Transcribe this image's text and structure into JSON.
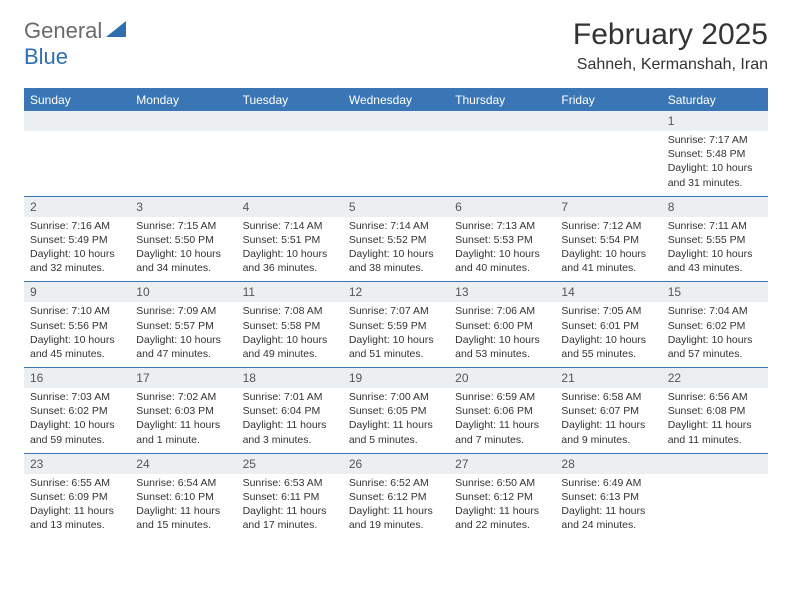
{
  "logo": {
    "text_general": "General",
    "text_blue": "Blue",
    "grey": "#6a6a6a",
    "blue": "#2f6fb0"
  },
  "title": {
    "month": "February 2025",
    "location": "Sahneh, Kermanshah, Iran"
  },
  "colors": {
    "header_bar": "#3a76b5",
    "daynum_bg": "#eceff1",
    "text": "#333333",
    "background": "#ffffff"
  },
  "typography": {
    "title_fontsize": 30,
    "location_fontsize": 16,
    "weekday_fontsize": 12,
    "daynum_fontsize": 12,
    "content_fontsize": 10.5
  },
  "weekdays": [
    "Sunday",
    "Monday",
    "Tuesday",
    "Wednesday",
    "Thursday",
    "Friday",
    "Saturday"
  ],
  "weeks": [
    [
      {
        "n": "",
        "sr": "",
        "ss": "",
        "dl": ""
      },
      {
        "n": "",
        "sr": "",
        "ss": "",
        "dl": ""
      },
      {
        "n": "",
        "sr": "",
        "ss": "",
        "dl": ""
      },
      {
        "n": "",
        "sr": "",
        "ss": "",
        "dl": ""
      },
      {
        "n": "",
        "sr": "",
        "ss": "",
        "dl": ""
      },
      {
        "n": "",
        "sr": "",
        "ss": "",
        "dl": ""
      },
      {
        "n": "1",
        "sr": "Sunrise: 7:17 AM",
        "ss": "Sunset: 5:48 PM",
        "dl": "Daylight: 10 hours and 31 minutes."
      }
    ],
    [
      {
        "n": "2",
        "sr": "Sunrise: 7:16 AM",
        "ss": "Sunset: 5:49 PM",
        "dl": "Daylight: 10 hours and 32 minutes."
      },
      {
        "n": "3",
        "sr": "Sunrise: 7:15 AM",
        "ss": "Sunset: 5:50 PM",
        "dl": "Daylight: 10 hours and 34 minutes."
      },
      {
        "n": "4",
        "sr": "Sunrise: 7:14 AM",
        "ss": "Sunset: 5:51 PM",
        "dl": "Daylight: 10 hours and 36 minutes."
      },
      {
        "n": "5",
        "sr": "Sunrise: 7:14 AM",
        "ss": "Sunset: 5:52 PM",
        "dl": "Daylight: 10 hours and 38 minutes."
      },
      {
        "n": "6",
        "sr": "Sunrise: 7:13 AM",
        "ss": "Sunset: 5:53 PM",
        "dl": "Daylight: 10 hours and 40 minutes."
      },
      {
        "n": "7",
        "sr": "Sunrise: 7:12 AM",
        "ss": "Sunset: 5:54 PM",
        "dl": "Daylight: 10 hours and 41 minutes."
      },
      {
        "n": "8",
        "sr": "Sunrise: 7:11 AM",
        "ss": "Sunset: 5:55 PM",
        "dl": "Daylight: 10 hours and 43 minutes."
      }
    ],
    [
      {
        "n": "9",
        "sr": "Sunrise: 7:10 AM",
        "ss": "Sunset: 5:56 PM",
        "dl": "Daylight: 10 hours and 45 minutes."
      },
      {
        "n": "10",
        "sr": "Sunrise: 7:09 AM",
        "ss": "Sunset: 5:57 PM",
        "dl": "Daylight: 10 hours and 47 minutes."
      },
      {
        "n": "11",
        "sr": "Sunrise: 7:08 AM",
        "ss": "Sunset: 5:58 PM",
        "dl": "Daylight: 10 hours and 49 minutes."
      },
      {
        "n": "12",
        "sr": "Sunrise: 7:07 AM",
        "ss": "Sunset: 5:59 PM",
        "dl": "Daylight: 10 hours and 51 minutes."
      },
      {
        "n": "13",
        "sr": "Sunrise: 7:06 AM",
        "ss": "Sunset: 6:00 PM",
        "dl": "Daylight: 10 hours and 53 minutes."
      },
      {
        "n": "14",
        "sr": "Sunrise: 7:05 AM",
        "ss": "Sunset: 6:01 PM",
        "dl": "Daylight: 10 hours and 55 minutes."
      },
      {
        "n": "15",
        "sr": "Sunrise: 7:04 AM",
        "ss": "Sunset: 6:02 PM",
        "dl": "Daylight: 10 hours and 57 minutes."
      }
    ],
    [
      {
        "n": "16",
        "sr": "Sunrise: 7:03 AM",
        "ss": "Sunset: 6:02 PM",
        "dl": "Daylight: 10 hours and 59 minutes."
      },
      {
        "n": "17",
        "sr": "Sunrise: 7:02 AM",
        "ss": "Sunset: 6:03 PM",
        "dl": "Daylight: 11 hours and 1 minute."
      },
      {
        "n": "18",
        "sr": "Sunrise: 7:01 AM",
        "ss": "Sunset: 6:04 PM",
        "dl": "Daylight: 11 hours and 3 minutes."
      },
      {
        "n": "19",
        "sr": "Sunrise: 7:00 AM",
        "ss": "Sunset: 6:05 PM",
        "dl": "Daylight: 11 hours and 5 minutes."
      },
      {
        "n": "20",
        "sr": "Sunrise: 6:59 AM",
        "ss": "Sunset: 6:06 PM",
        "dl": "Daylight: 11 hours and 7 minutes."
      },
      {
        "n": "21",
        "sr": "Sunrise: 6:58 AM",
        "ss": "Sunset: 6:07 PM",
        "dl": "Daylight: 11 hours and 9 minutes."
      },
      {
        "n": "22",
        "sr": "Sunrise: 6:56 AM",
        "ss": "Sunset: 6:08 PM",
        "dl": "Daylight: 11 hours and 11 minutes."
      }
    ],
    [
      {
        "n": "23",
        "sr": "Sunrise: 6:55 AM",
        "ss": "Sunset: 6:09 PM",
        "dl": "Daylight: 11 hours and 13 minutes."
      },
      {
        "n": "24",
        "sr": "Sunrise: 6:54 AM",
        "ss": "Sunset: 6:10 PM",
        "dl": "Daylight: 11 hours and 15 minutes."
      },
      {
        "n": "25",
        "sr": "Sunrise: 6:53 AM",
        "ss": "Sunset: 6:11 PM",
        "dl": "Daylight: 11 hours and 17 minutes."
      },
      {
        "n": "26",
        "sr": "Sunrise: 6:52 AM",
        "ss": "Sunset: 6:12 PM",
        "dl": "Daylight: 11 hours and 19 minutes."
      },
      {
        "n": "27",
        "sr": "Sunrise: 6:50 AM",
        "ss": "Sunset: 6:12 PM",
        "dl": "Daylight: 11 hours and 22 minutes."
      },
      {
        "n": "28",
        "sr": "Sunrise: 6:49 AM",
        "ss": "Sunset: 6:13 PM",
        "dl": "Daylight: 11 hours and 24 minutes."
      },
      {
        "n": "",
        "sr": "",
        "ss": "",
        "dl": ""
      }
    ]
  ]
}
